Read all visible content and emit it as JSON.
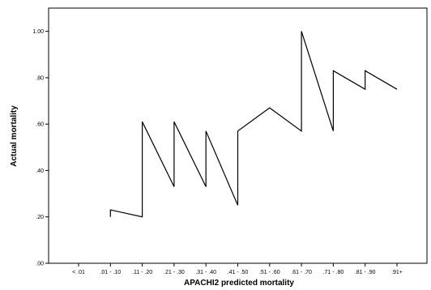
{
  "chart_data": {
    "type": "line",
    "xlabel": "APACHI2 predicted mortality",
    "ylabel": "Actual mortality",
    "ylim": [
      0,
      1.1
    ],
    "yticks": [
      ".00",
      ".20",
      ".40",
      ".60",
      ".80",
      "1.00"
    ],
    "ytick_values": [
      0,
      0.2,
      0.4,
      0.6,
      0.8,
      1.0
    ],
    "categories": [
      "< .01",
      ".01 - .10",
      ".11 - .20",
      ".21 - .30",
      ".31 - .40",
      ".41 - .50",
      ".51 - .60",
      ".61 - .70",
      ".71 - .80",
      ".81 - .90",
      ".91+"
    ],
    "points": [
      {
        "x": ".01 - .10",
        "y": 0.2
      },
      {
        "x": ".01 - .10",
        "y": 0.23
      },
      {
        "x": ".11 - .20",
        "y": 0.2
      },
      {
        "x": ".11 - .20",
        "y": 0.61
      },
      {
        "x": ".21 - .30",
        "y": 0.33
      },
      {
        "x": ".21 - .30",
        "y": 0.61
      },
      {
        "x": ".31 - .40",
        "y": 0.33
      },
      {
        "x": ".31 - .40",
        "y": 0.57
      },
      {
        "x": ".41 - .50",
        "y": 0.25
      },
      {
        "x": ".41 - .50",
        "y": 0.57
      },
      {
        "x": ".51 - .60",
        "y": 0.67
      },
      {
        "x": ".61 - .70",
        "y": 0.57
      },
      {
        "x": ".61 - .70",
        "y": 1.0
      },
      {
        "x": ".71 - .80",
        "y": 0.57
      },
      {
        "x": ".71 - .80",
        "y": 0.83
      },
      {
        "x": ".81 - .90",
        "y": 0.75
      },
      {
        "x": ".81 - .90",
        "y": 0.83
      },
      {
        "x": ".91+",
        "y": 0.75
      }
    ],
    "grid": false,
    "line_color": "#000000"
  }
}
